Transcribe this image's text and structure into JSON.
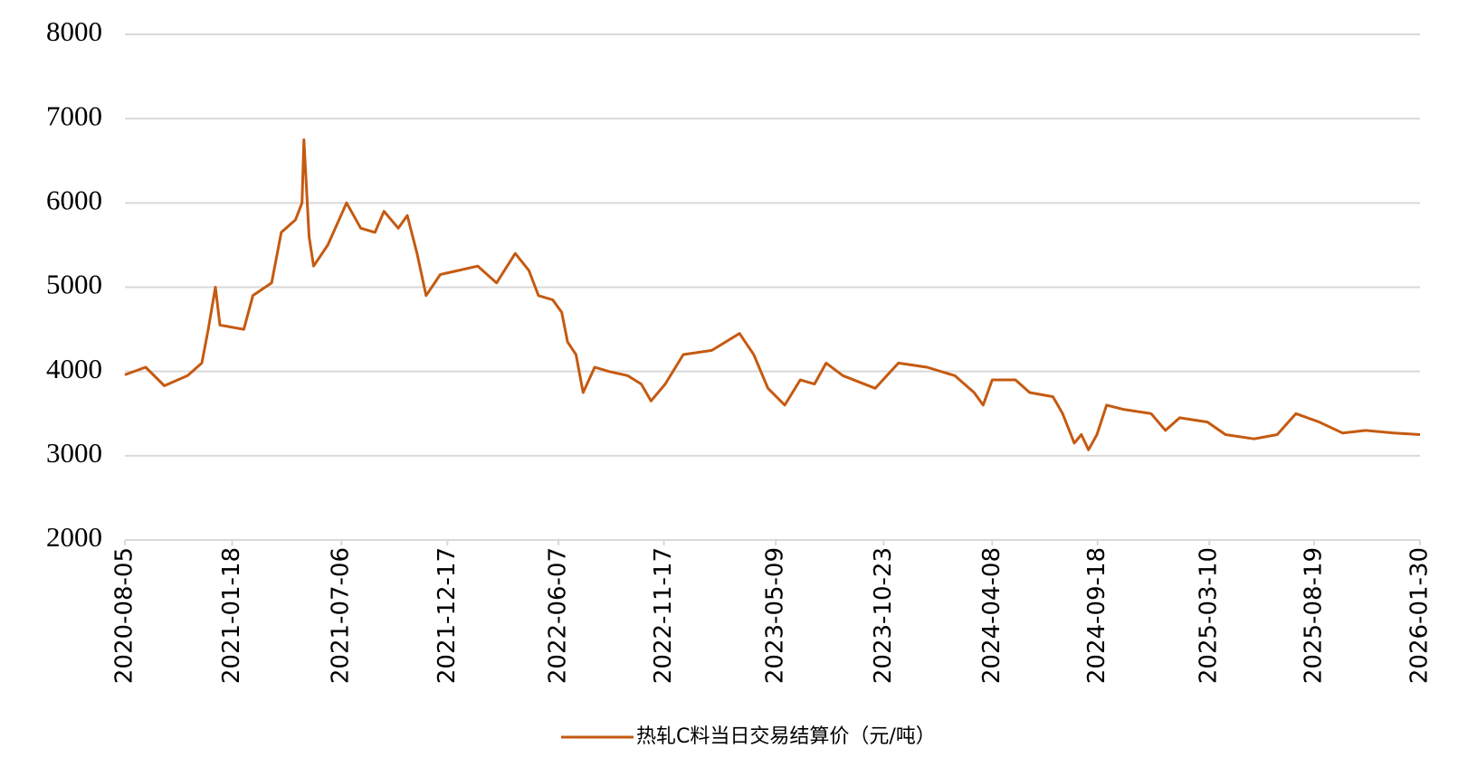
{
  "chart_data": {
    "type": "line",
    "x": [
      "2020-08-05",
      "2020-09-06",
      "2020-10-05",
      "2020-11-10",
      "2020-12-02",
      "2020-12-12",
      "2020-12-23",
      "2020-12-30",
      "2021-02-05",
      "2021-02-19",
      "2021-03-20",
      "2021-04-04",
      "2021-04-26",
      "2021-05-06",
      "2021-05-09",
      "2021-05-17",
      "2021-05-24",
      "2021-06-15",
      "2021-07-14",
      "2021-08-05",
      "2021-08-27",
      "2021-09-10",
      "2021-10-02",
      "2021-10-16",
      "2021-10-31",
      "2021-11-14",
      "2021-12-06",
      "2022-01-04",
      "2022-02-02",
      "2022-03-03",
      "2022-04-01",
      "2022-04-22",
      "2022-05-07",
      "2022-05-29",
      "2022-06-12",
      "2022-06-21",
      "2022-07-04",
      "2022-07-15",
      "2022-08-02",
      "2022-08-24",
      "2022-09-22",
      "2022-10-13",
      "2022-10-28",
      "2022-11-19",
      "2022-12-17",
      "2023-01-30",
      "2023-03-14",
      "2023-04-05",
      "2023-04-27",
      "2023-05-23",
      "2023-06-16",
      "2023-07-08",
      "2023-07-26",
      "2023-08-21",
      "2023-10-10",
      "2023-11-15",
      "2023-12-29",
      "2024-02-10",
      "2024-03-11",
      "2024-03-25",
      "2024-04-08",
      "2024-05-14",
      "2024-06-05",
      "2024-07-11",
      "2024-07-26",
      "2024-08-13",
      "2024-08-24",
      "2024-09-04",
      "2024-09-17",
      "2024-10-02",
      "2024-10-28",
      "2024-12-10",
      "2025-01-01",
      "2025-01-23",
      "2025-03-07",
      "2025-04-04",
      "2025-05-18",
      "2025-06-23",
      "2025-07-22",
      "2025-08-27",
      "2025-10-02",
      "2025-11-07",
      "2025-12-21",
      "2026-01-30"
    ],
    "series": [
      {
        "name": "热轧C料当日交易结算价（元/吨）",
        "color": "#c55a11",
        "values": [
          3960,
          4050,
          3830,
          3950,
          4100,
          4500,
          5000,
          4550,
          4500,
          4900,
          5050,
          5650,
          5800,
          6000,
          6750,
          5600,
          5250,
          5500,
          6000,
          5700,
          5650,
          5900,
          5700,
          5850,
          5400,
          4900,
          5150,
          5200,
          5250,
          5050,
          5400,
          5200,
          4900,
          4850,
          4700,
          4350,
          4200,
          3750,
          4050,
          4000,
          3950,
          3850,
          3650,
          3850,
          4200,
          4250,
          4450,
          4200,
          3800,
          3600,
          3900,
          3850,
          4100,
          3950,
          3800,
          4100,
          4050,
          3950,
          3750,
          3600,
          3900,
          3900,
          3750,
          3700,
          3500,
          3150,
          3250,
          3070,
          3250,
          3600,
          3550,
          3500,
          3300,
          3450,
          3400,
          3250,
          3200,
          3250,
          3500,
          3400,
          3270,
          3300,
          3270,
          3250
        ]
      }
    ],
    "xlim": [
      "2020-08-05",
      "2026-01-30"
    ],
    "xticks": [
      "2020-08-05",
      "2021-01-18",
      "2021-07-06",
      "2021-12-17",
      "2022-06-07",
      "2022-11-17",
      "2023-05-09",
      "2023-10-23",
      "2024-04-08",
      "2024-09-18",
      "2025-03-10",
      "2025-08-19",
      "2026-01-30"
    ],
    "ylim": [
      2000,
      8000
    ],
    "yticks": [
      2000,
      3000,
      4000,
      5000,
      6000,
      7000,
      8000
    ],
    "grid": true
  }
}
